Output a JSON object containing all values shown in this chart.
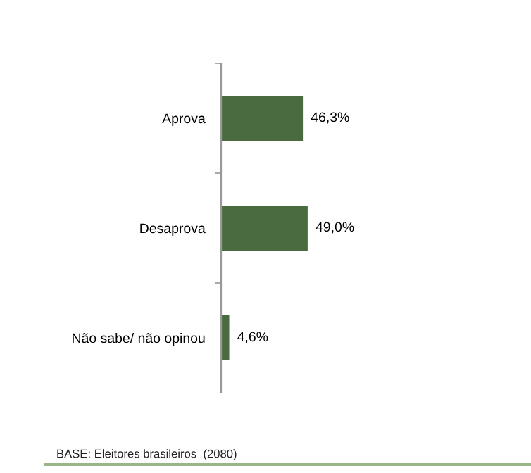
{
  "chart_data": {
    "type": "bar",
    "orientation": "horizontal",
    "categories": [
      "Aprova",
      "Desaprova",
      "Não sabe/ não opinou"
    ],
    "values": [
      46.3,
      49.0,
      4.6
    ],
    "value_labels": [
      "46,3%",
      "49,0%",
      "4,6%"
    ],
    "color": "#4a6b3f",
    "tick_labels": "y",
    "grid": false,
    "legend": false,
    "annotations": [
      "BASE: Eleitores brasileiros  (2080)"
    ]
  }
}
